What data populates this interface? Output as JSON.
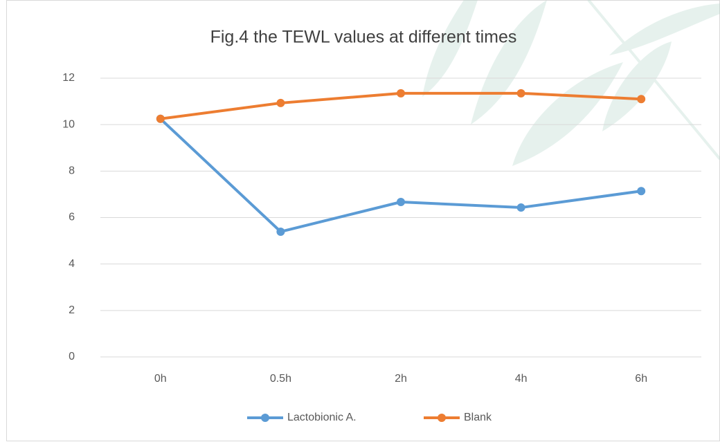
{
  "chart_data": {
    "type": "line",
    "title": "Fig.4 the TEWL values at different times",
    "categories": [
      "0h",
      "0.5h",
      "2h",
      "4h",
      "6h"
    ],
    "series": [
      {
        "name": "Lactobionic A.",
        "color": "#5b9bd5",
        "values": [
          10.25,
          5.39,
          6.67,
          6.43,
          7.14
        ]
      },
      {
        "name": "Blank",
        "color": "#ed7d31",
        "values": [
          10.25,
          10.93,
          11.35,
          11.35,
          11.1
        ]
      }
    ],
    "ylim": [
      0,
      12
    ],
    "yticks": [
      0,
      2,
      4,
      6,
      8,
      10,
      12
    ],
    "grid": true,
    "legend": "bottom"
  }
}
